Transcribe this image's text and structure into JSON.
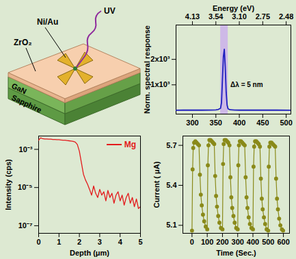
{
  "diagram": {
    "labels": {
      "contact": "Ni/Au",
      "light": "UV",
      "dielectric": "ZrO₂",
      "layer": "GaN",
      "substrate": "Sapphire"
    }
  },
  "chart_data": [
    {
      "type": "line",
      "xlabel": null,
      "ylabel": "Norm. spectral response",
      "x2label": "Energy (eV)",
      "annotation": "Δλ = 5 nm",
      "shaded_band": [
        360,
        376
      ],
      "x": [
        265,
        280,
        300,
        320,
        340,
        350,
        355,
        360,
        362,
        364,
        366,
        368,
        370,
        372,
        374,
        376,
        380,
        390,
        400,
        420,
        450,
        480,
        510
      ],
      "series": [
        {
          "name": "response",
          "color": "#1f1fbf",
          "values": [
            0,
            5,
            10,
            5,
            10,
            15,
            30,
            80,
            300,
            1200,
            2100,
            2400,
            1700,
            700,
            200,
            60,
            20,
            10,
            5,
            5,
            5,
            5,
            0
          ]
        }
      ],
      "xlim": [
        265,
        510
      ],
      "xticks": [
        300,
        350,
        400,
        450,
        500
      ],
      "x2ticks": [
        {
          "value": 300,
          "label": "4.13"
        },
        {
          "value": 350,
          "label": "3.54"
        },
        {
          "value": 400,
          "label": "3.10"
        },
        {
          "value": 450,
          "label": "2.75"
        },
        {
          "value": 500,
          "label": "2.48"
        }
      ],
      "ylim": [
        -150,
        3350
      ],
      "yticks": [
        {
          "value": 1000,
          "label": "1x10³"
        },
        {
          "value": 2000,
          "label": "2x10³"
        }
      ]
    },
    {
      "type": "line",
      "xlabel": "Depth (μm)",
      "ylabel": "Intensity (cps)",
      "log": "y",
      "legend": "top-right",
      "x": [
        0,
        0.1,
        0.2,
        0.3,
        0.4,
        0.5,
        0.6,
        0.7,
        0.8,
        0.9,
        1.0,
        1.1,
        1.2,
        1.3,
        1.4,
        1.5,
        1.6,
        1.7,
        1.8,
        1.9,
        2.0,
        2.1,
        2.2,
        2.3,
        2.4,
        2.5,
        2.6,
        2.7,
        2.8,
        2.9,
        3.0,
        3.1,
        3.2,
        3.3,
        3.4,
        3.5,
        3.6,
        3.7,
        3.8,
        3.9,
        4.0,
        4.1,
        4.2,
        4.3,
        4.4,
        4.5,
        4.6,
        4.7,
        4.8,
        4.9,
        5.0
      ],
      "series": [
        {
          "name": "Mg",
          "color": "#e31a1c",
          "values": [
            0.003,
            0.004,
            0.0036,
            0.0035,
            0.0035,
            0.0034,
            0.0034,
            0.0033,
            0.0033,
            0.0032,
            0.0032,
            0.0031,
            0.003,
            0.003,
            0.0029,
            0.0028,
            0.0027,
            0.0026,
            0.0024,
            0.0018,
            0.0008,
            0.0002,
            5e-05,
            2.5e-05,
            1.5e-05,
            8e-06,
            4e-06,
            1.2e-05,
            5e-06,
            3e-06,
            8e-06,
            4e-06,
            6e-06,
            2e-06,
            7e-06,
            3e-06,
            5e-06,
            1.5e-06,
            4e-06,
            6e-06,
            2e-06,
            4e-06,
            1.2e-06,
            3e-06,
            5e-06,
            1.5e-06,
            3e-06,
            1e-06,
            2.5e-06,
            8e-07,
            1e-06
          ]
        }
      ],
      "xlim": [
        0,
        5
      ],
      "xticks": [
        0,
        1,
        2,
        3,
        4,
        5
      ],
      "ylim": [
        4e-08,
        0.005
      ],
      "yticks": [
        {
          "value": 0.001,
          "label": "10⁻³"
        },
        {
          "value": 1e-05,
          "label": "10⁻⁵"
        },
        {
          "value": 1e-07,
          "label": "10⁻⁷"
        }
      ]
    },
    {
      "type": "line",
      "marker": "circle",
      "xlabel": "Time (Sec.)",
      "ylabel": "Current ( μA)",
      "x": [
        0,
        4,
        8,
        14,
        22,
        30,
        38,
        46,
        52,
        58,
        64,
        72,
        80,
        90,
        100,
        104,
        108,
        114,
        122,
        130,
        138,
        146,
        152,
        158,
        164,
        172,
        180,
        190,
        200,
        204,
        208,
        214,
        222,
        230,
        238,
        246,
        252,
        258,
        264,
        272,
        280,
        290,
        300,
        304,
        308,
        314,
        322,
        330,
        338,
        346,
        352,
        358,
        364,
        372,
        380,
        390,
        400,
        404,
        408,
        414,
        422,
        430,
        438,
        446,
        452,
        458,
        464,
        472,
        480,
        490,
        500,
        504,
        508,
        514,
        522,
        530,
        538,
        546,
        552,
        558,
        564,
        572,
        580,
        590,
        598
      ],
      "series": [
        {
          "name": "current",
          "color": "#8a8a1a",
          "values": [
            5.06,
            5.52,
            5.68,
            5.72,
            5.73,
            5.72,
            5.71,
            5.7,
            5.48,
            5.33,
            5.25,
            5.18,
            5.13,
            5.09,
            5.07,
            5.55,
            5.7,
            5.74,
            5.74,
            5.73,
            5.72,
            5.71,
            5.47,
            5.32,
            5.24,
            5.17,
            5.12,
            5.08,
            5.07,
            5.56,
            5.71,
            5.74,
            5.74,
            5.73,
            5.72,
            5.7,
            5.46,
            5.31,
            5.23,
            5.17,
            5.12,
            5.08,
            5.07,
            5.55,
            5.7,
            5.73,
            5.73,
            5.72,
            5.71,
            5.7,
            5.46,
            5.31,
            5.23,
            5.16,
            5.11,
            5.08,
            5.07,
            5.54,
            5.69,
            5.73,
            5.73,
            5.72,
            5.71,
            5.69,
            5.45,
            5.3,
            5.22,
            5.16,
            5.11,
            5.07,
            5.06,
            5.54,
            5.69,
            5.72,
            5.72,
            5.71,
            5.7,
            5.69,
            5.45,
            5.3,
            5.22,
            5.15,
            5.1,
            5.07,
            5.06
          ]
        }
      ],
      "xlim": [
        -60,
        640
      ],
      "xticks": [
        0,
        100,
        200,
        300,
        400,
        500,
        600
      ],
      "ylim": [
        5.04,
        5.77
      ],
      "yticks": [
        5.1,
        5.4,
        5.7
      ]
    }
  ]
}
